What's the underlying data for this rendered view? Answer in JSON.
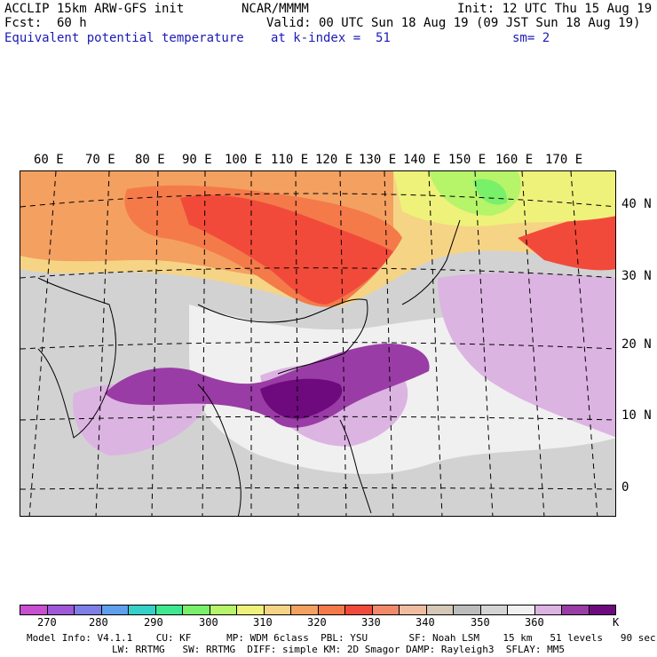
{
  "header": {
    "model": "ACCLIP 15km ARW-GFS init",
    "org": "NCAR/MMMM",
    "init": "Init: 12 UTC Thu 15 Aug 19",
    "fcst_label": "Fcst:",
    "fcst_value": "60 h",
    "valid": "Valid: 00 UTC Sun 18 Aug 19 (09 JST Sun 18 Aug 19)",
    "field": "Equivalent potential temperature",
    "level": "at k-index =  51",
    "smoothing": "sm= 2"
  },
  "map": {
    "lon_labels": [
      "60 E",
      "70 E",
      "80 E",
      "90 E",
      "100 E",
      "110 E",
      "120 E",
      "130 E",
      "140 E",
      "150 E",
      "160 E",
      "170 E"
    ],
    "lat_labels": [
      "40 N",
      "30 N",
      "20 N",
      "10 N",
      "0"
    ]
  },
  "colorbar": {
    "unit": "K",
    "ticks": [
      "270",
      "280",
      "290",
      "300",
      "310",
      "320",
      "330",
      "340",
      "350",
      "360"
    ],
    "colors": [
      "#c84fd0",
      "#9e58d8",
      "#7e7ee6",
      "#5fa0ee",
      "#35d0c8",
      "#3ee890",
      "#78f06a",
      "#b6f46a",
      "#eef27a",
      "#f6d486",
      "#f4a060",
      "#f47a4a",
      "#f24a3a",
      "#f28a6a",
      "#f0bca0",
      "#d6c8b6",
      "#bcbcbc",
      "#d4d4d4",
      "#f0f0f0",
      "#dcb4e2",
      "#9a3ca6",
      "#6e0a7e"
    ]
  },
  "footer": {
    "line1": "Model Info: V4.1.1    CU: KF      MP: WDM 6class  PBL: YSU       SF: Noah LSM    15 km   51 levels   90 sec",
    "line2": "LW: RRTMG   SW: RRTMG  DIFF: simple KM: 2D Smagor DAMP: Rayleigh3  SFLAY: MM5"
  }
}
